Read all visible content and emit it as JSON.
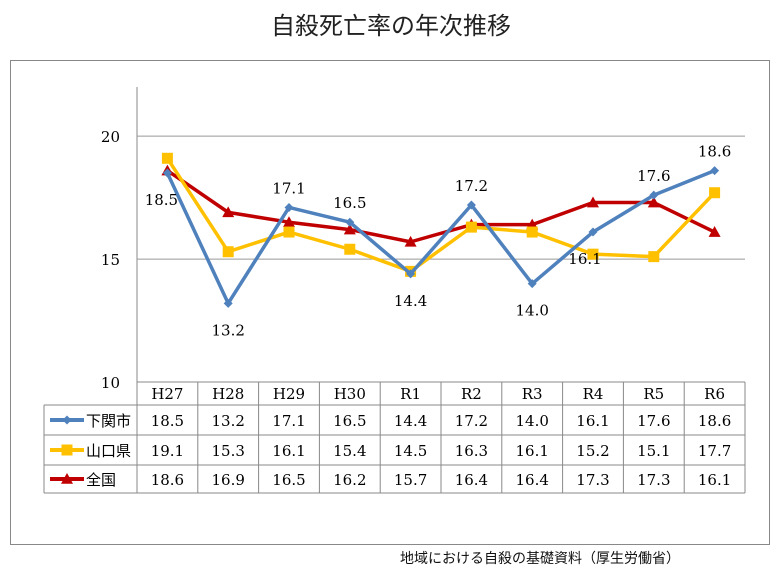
{
  "title": "自殺死亡率の年次推移",
  "source": "地域における自殺の基礎資料（厚生労働省）",
  "chart_data": {
    "type": "line",
    "title": "自殺死亡率の年次推移",
    "categories": [
      "H27",
      "H28",
      "H29",
      "H30",
      "R1",
      "R2",
      "R3",
      "R4",
      "R5",
      "R6"
    ],
    "ylim": [
      10,
      22
    ],
    "yticks": [
      10,
      15,
      20
    ],
    "grid": true,
    "legend": "data-table-left",
    "series": [
      {
        "name": "下関市",
        "color": "#4f81bd",
        "marker": "diamond",
        "values": [
          18.5,
          13.2,
          17.1,
          16.5,
          14.4,
          17.2,
          14.0,
          16.1,
          17.6,
          18.6
        ],
        "data_labels": true
      },
      {
        "name": "山口県",
        "color": "#ffc000",
        "marker": "square",
        "values": [
          19.1,
          15.3,
          16.1,
          15.4,
          14.5,
          16.3,
          16.1,
          15.2,
          15.1,
          17.7
        ]
      },
      {
        "name": "全国",
        "color": "#c00000",
        "marker": "triangle",
        "values": [
          18.6,
          16.9,
          16.5,
          16.2,
          15.7,
          16.4,
          16.4,
          17.3,
          17.3,
          16.1
        ]
      }
    ]
  }
}
